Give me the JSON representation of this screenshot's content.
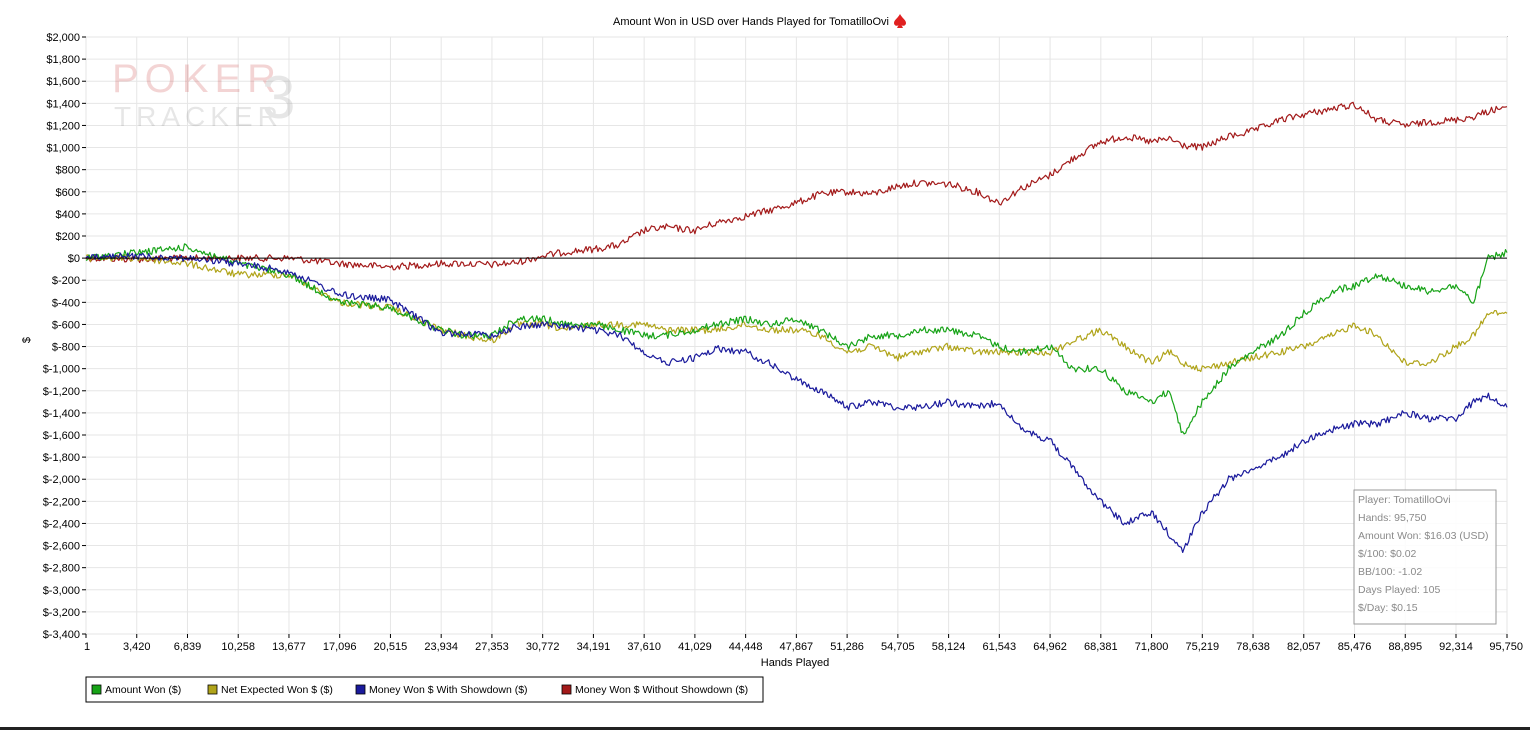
{
  "chart_data": {
    "type": "line",
    "title": "Amount Won in USD over Hands Played for TomatilloOvi",
    "xlabel": "Hands Played",
    "ylabel": "$",
    "xlim": [
      1,
      95750
    ],
    "ylim": [
      -3400,
      2000
    ],
    "x_ticks": [
      "1",
      "3,420",
      "6,839",
      "10,258",
      "13,677",
      "17,096",
      "20,515",
      "23,934",
      "27,353",
      "30,772",
      "34,191",
      "37,610",
      "41,029",
      "44,448",
      "47,867",
      "51,286",
      "54,705",
      "58,124",
      "61,543",
      "64,962",
      "68,381",
      "71,800",
      "75,219",
      "78,638",
      "82,057",
      "85,476",
      "88,895",
      "92,314",
      "95,750"
    ],
    "y_ticks": [
      2000,
      1800,
      1600,
      1400,
      1200,
      1000,
      800,
      600,
      400,
      200,
      0,
      -200,
      -400,
      -600,
      -800,
      -1000,
      -1200,
      -1400,
      -1600,
      -1800,
      -2000,
      -2200,
      -2400,
      -2600,
      -2800,
      -3000,
      -3200,
      -3400
    ],
    "y_tick_labels": [
      "$2,000",
      "$1,800",
      "$1,600",
      "$1,400",
      "$1,200",
      "$1,000",
      "$800",
      "$600",
      "$400",
      "$200",
      "$0",
      "$-200",
      "$-400",
      "$-600",
      "$-800",
      "$-1,000",
      "$-1,200",
      "$-1,400",
      "$-1,600",
      "$-1,800",
      "$-2,000",
      "$-2,200",
      "$-2,400",
      "$-2,600",
      "$-2,800",
      "$-3,000",
      "$-3,200",
      "$-3,400"
    ],
    "grid": true,
    "legend_position": "bottom-left",
    "series": [
      {
        "name": "Amount Won ($)",
        "color": "#17a317",
        "x": [
          1,
          3420,
          6839,
          10258,
          13677,
          17096,
          20515,
          23934,
          25500,
          27353,
          29000,
          30772,
          32500,
          34191,
          36000,
          37610,
          39000,
          41029,
          42500,
          44448,
          46000,
          47867,
          49500,
          51286,
          53000,
          54705,
          56000,
          58124,
          60000,
          61543,
          63000,
          64962,
          66500,
          68381,
          70000,
          71800,
          73000,
          73900,
          75219,
          77000,
          78638,
          80500,
          82057,
          84000,
          85476,
          87000,
          88895,
          90500,
          92314,
          93500,
          94500,
          95750
        ],
        "values": [
          0,
          50,
          100,
          -50,
          -150,
          -400,
          -450,
          -650,
          -700,
          -700,
          -550,
          -550,
          -600,
          -600,
          -650,
          -700,
          -700,
          -650,
          -600,
          -550,
          -600,
          -550,
          -650,
          -800,
          -700,
          -700,
          -650,
          -650,
          -700,
          -800,
          -850,
          -800,
          -1000,
          -1000,
          -1200,
          -1300,
          -1200,
          -1600,
          -1300,
          -1000,
          -850,
          -700,
          -500,
          -300,
          -250,
          -150,
          -250,
          -300,
          -250,
          -400,
          0,
          50
        ]
      },
      {
        "name": "Net Expected Won $ ($)",
        "color": "#b0a41a",
        "x": [
          1,
          3420,
          6839,
          10258,
          13677,
          17096,
          20515,
          23934,
          25500,
          27353,
          29000,
          30772,
          32500,
          34191,
          36000,
          37610,
          39000,
          41029,
          42500,
          44448,
          46000,
          47867,
          49500,
          51286,
          53000,
          54705,
          56000,
          58124,
          60000,
          61543,
          63000,
          64962,
          66500,
          68381,
          70000,
          71800,
          73000,
          73900,
          75219,
          77000,
          78638,
          80500,
          82057,
          84000,
          85476,
          87000,
          88895,
          90500,
          92314,
          93500,
          94500,
          95750
        ],
        "values": [
          0,
          0,
          -50,
          -150,
          -150,
          -400,
          -450,
          -650,
          -700,
          -750,
          -600,
          -600,
          -650,
          -600,
          -600,
          -600,
          -650,
          -650,
          -650,
          -600,
          -650,
          -650,
          -700,
          -850,
          -800,
          -900,
          -850,
          -800,
          -850,
          -850,
          -850,
          -850,
          -750,
          -650,
          -800,
          -950,
          -850,
          -950,
          -1000,
          -950,
          -900,
          -850,
          -800,
          -700,
          -600,
          -700,
          -950,
          -950,
          -800,
          -700,
          -500,
          -500
        ]
      },
      {
        "name": "Money Won $ With Showdown ($)",
        "color": "#1a1a9c",
        "x": [
          1,
          3420,
          6839,
          10258,
          13677,
          17096,
          20515,
          23934,
          25500,
          27353,
          29000,
          30772,
          32500,
          34191,
          36000,
          37610,
          39000,
          41029,
          42500,
          44448,
          46000,
          47867,
          49500,
          51286,
          53000,
          54705,
          56000,
          58124,
          60000,
          61543,
          63000,
          64962,
          66500,
          68381,
          70000,
          71800,
          73000,
          73900,
          75219,
          77000,
          78638,
          80500,
          82057,
          84000,
          85476,
          87000,
          88895,
          90500,
          92314,
          93500,
          94500,
          95750
        ],
        "values": [
          0,
          20,
          0,
          -50,
          -120,
          -330,
          -380,
          -680,
          -680,
          -700,
          -620,
          -600,
          -620,
          -650,
          -700,
          -850,
          -950,
          -900,
          -820,
          -850,
          -950,
          -1100,
          -1200,
          -1350,
          -1300,
          -1350,
          -1350,
          -1300,
          -1350,
          -1300,
          -1550,
          -1650,
          -1900,
          -2200,
          -2400,
          -2300,
          -2500,
          -2650,
          -2300,
          -2000,
          -1900,
          -1800,
          -1650,
          -1550,
          -1500,
          -1500,
          -1400,
          -1450,
          -1450,
          -1300,
          -1250,
          -1350
        ]
      },
      {
        "name": "Money Won $ Without Showdown ($)",
        "color": "#a31a1a",
        "x": [
          1,
          3420,
          6839,
          10258,
          13677,
          17096,
          20515,
          23934,
          25500,
          27353,
          29000,
          30772,
          32500,
          34191,
          36000,
          37610,
          39000,
          41029,
          42500,
          44448,
          46000,
          47867,
          49500,
          51286,
          53000,
          54705,
          56000,
          58124,
          60000,
          61543,
          63000,
          64962,
          66500,
          68381,
          70000,
          71800,
          73000,
          73900,
          75219,
          77000,
          78638,
          80500,
          82057,
          84000,
          85476,
          87000,
          88895,
          90500,
          92314,
          93500,
          94500,
          95750
        ],
        "values": [
          0,
          -10,
          0,
          0,
          0,
          -50,
          -80,
          -50,
          -50,
          -60,
          -40,
          20,
          60,
          80,
          120,
          250,
          280,
          250,
          320,
          380,
          430,
          500,
          580,
          600,
          580,
          650,
          680,
          670,
          600,
          500,
          630,
          750,
          900,
          1050,
          1100,
          1050,
          1080,
          1020,
          1000,
          1100,
          1150,
          1250,
          1300,
          1350,
          1390,
          1250,
          1200,
          1230,
          1250,
          1280,
          1330,
          1370
        ]
      }
    ]
  },
  "watermark": {
    "line1": "POKER",
    "digit": "3",
    "line2": "TRACKER"
  },
  "stats_box": {
    "lines": [
      "Player: TomatilloOvi",
      "Hands: 95,750",
      "Amount Won: $16.03 (USD)",
      "$/100: $0.02",
      "BB/100: -1.02",
      "Days Played: 105",
      "$/Day: $0.15"
    ]
  },
  "colors": {
    "spade_icon": "#e02020",
    "plot_bg": "#ffffff",
    "grid": "#e6e6e6",
    "zero_line": "#000000"
  }
}
